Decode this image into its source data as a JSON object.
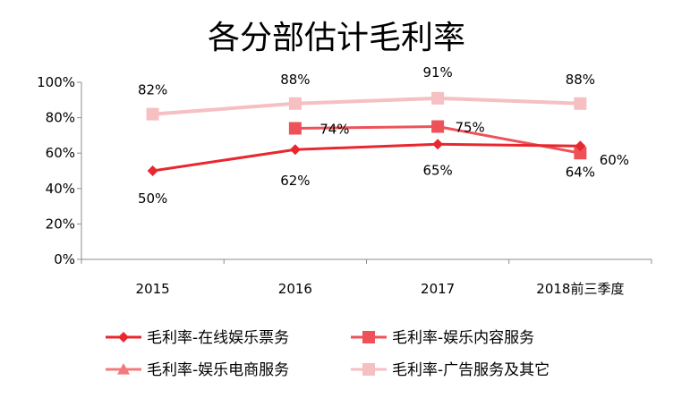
{
  "chart_data": {
    "type": "line",
    "title": "各分部估计毛利率",
    "xlabel": "",
    "ylabel": "",
    "categories": [
      "2015",
      "2016",
      "2017",
      "2018前三季度"
    ],
    "ylim": [
      0,
      100
    ],
    "y_ticks": [
      "0%",
      "20%",
      "40%",
      "60%",
      "80%",
      "100%"
    ],
    "grid": false,
    "legend_position": "bottom",
    "series": [
      {
        "name": "毛利率-在线娱乐票务",
        "marker": "diamond",
        "color": "#e8272f",
        "values": [
          50,
          62,
          65,
          64
        ],
        "labels": [
          "50%",
          "62%",
          "65%",
          "64%"
        ]
      },
      {
        "name": "毛利率-娱乐内容服务",
        "marker": "square",
        "color": "#ee5258",
        "values": [
          null,
          74,
          75,
          60
        ],
        "labels": [
          null,
          "74%",
          "75%",
          "60%"
        ]
      },
      {
        "name": "毛利率-娱乐电商服务",
        "marker": "triangle",
        "color": "#f27a7e",
        "values": [
          null,
          null,
          null,
          null
        ],
        "labels": [
          null,
          null,
          null,
          null
        ]
      },
      {
        "name": "毛利率-广告服务及其它",
        "marker": "square",
        "color": "#f6bfc1",
        "values": [
          82,
          88,
          91,
          88
        ],
        "labels": [
          "82%",
          "88%",
          "91%",
          "88%"
        ]
      }
    ]
  }
}
